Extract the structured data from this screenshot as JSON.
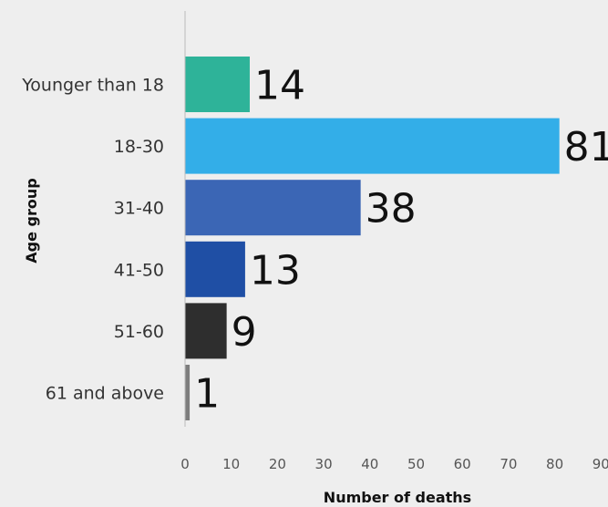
{
  "chart_data": {
    "type": "bar",
    "orientation": "horizontal",
    "categories": [
      "Younger than 18",
      "18-30",
      "31-40",
      "41-50",
      "51-60",
      "61 and above"
    ],
    "values": [
      14,
      81,
      38,
      13,
      9,
      1
    ],
    "colors": [
      "#2eb399",
      "#33aee8",
      "#3b66b5",
      "#1f4fa5",
      "#2e2e2e",
      "#7d7d7d"
    ],
    "xlabel": "Number of deaths",
    "ylabel": "Age group",
    "xlim": [
      0,
      90
    ],
    "xticks": [
      0,
      10,
      20,
      30,
      40,
      50,
      60,
      70,
      80,
      90
    ],
    "grid": false,
    "data_labels": true
  }
}
